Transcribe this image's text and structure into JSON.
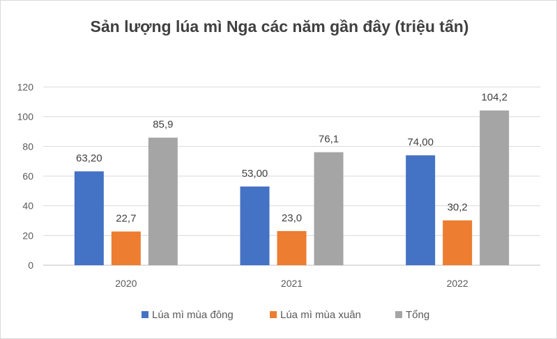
{
  "chart_data": {
    "type": "bar",
    "title": "Sản lượng lúa mì Nga các năm gần đây (triệu tấn)",
    "categories": [
      "2020",
      "2021",
      "2022"
    ],
    "series": [
      {
        "name": "Lúa mì mùa đông",
        "values": [
          63.2,
          53.0,
          74.0
        ],
        "labels": [
          "63,20",
          "53,00",
          "74,00"
        ],
        "color": "#4472c4"
      },
      {
        "name": "Lúa mì mùa xuân",
        "values": [
          22.7,
          23.0,
          30.2
        ],
        "labels": [
          "22,7",
          "23,0",
          "30,2"
        ],
        "color": "#ed7d31"
      },
      {
        "name": "Tổng",
        "values": [
          85.9,
          76.1,
          104.2
        ],
        "labels": [
          "85,9",
          "76,1",
          "104,2"
        ],
        "color": "#a5a5a5"
      }
    ],
    "yticks": [
      "0",
      "20",
      "40",
      "60",
      "80",
      "100",
      "120"
    ],
    "ylim": [
      0,
      120
    ],
    "grid": true,
    "legend": "bottom"
  }
}
